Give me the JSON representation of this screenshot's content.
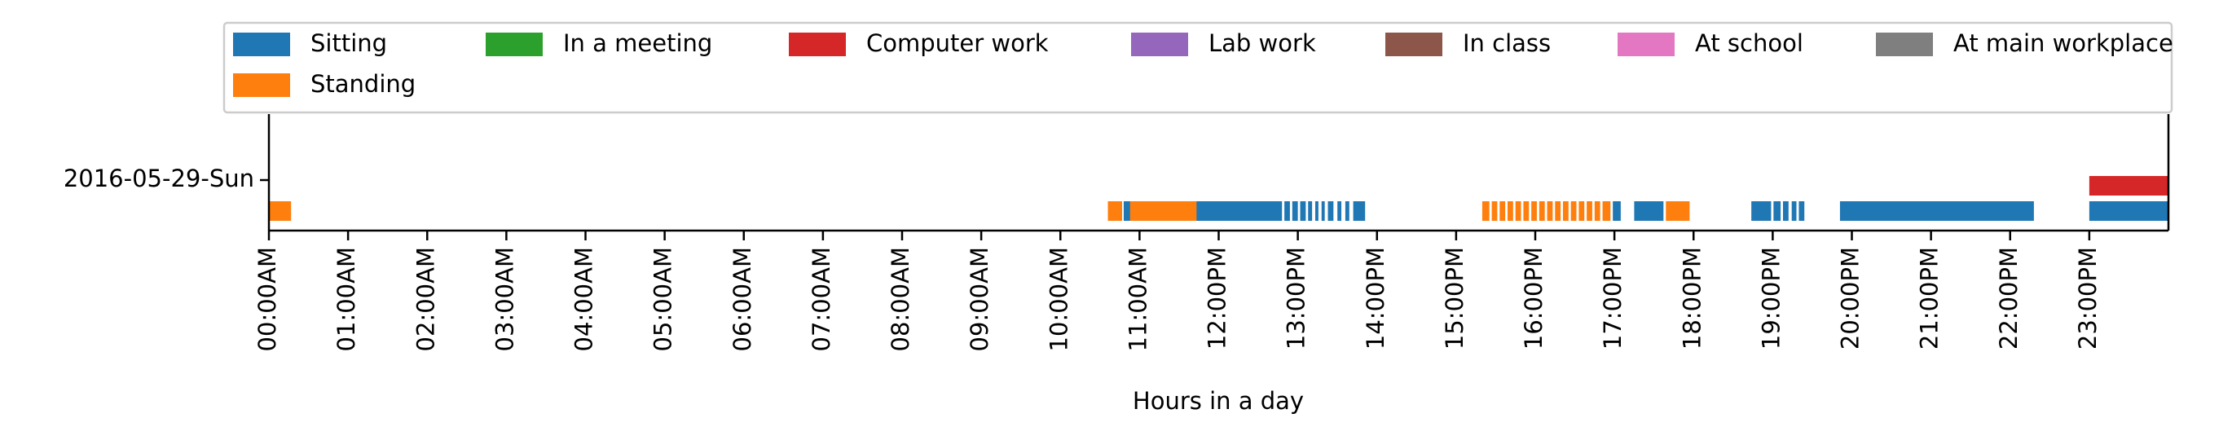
{
  "chart_data": {
    "type": "timeline",
    "xlabel": "Hours in a day",
    "date_label": "2016-05-29-Sun",
    "xlim": [
      0,
      24
    ],
    "x_ticks": [
      {
        "value": 0,
        "label": "00:00AM"
      },
      {
        "value": 1,
        "label": "01:00AM"
      },
      {
        "value": 2,
        "label": "02:00AM"
      },
      {
        "value": 3,
        "label": "03:00AM"
      },
      {
        "value": 4,
        "label": "04:00AM"
      },
      {
        "value": 5,
        "label": "05:00AM"
      },
      {
        "value": 6,
        "label": "06:00AM"
      },
      {
        "value": 7,
        "label": "07:00AM"
      },
      {
        "value": 8,
        "label": "08:00AM"
      },
      {
        "value": 9,
        "label": "09:00AM"
      },
      {
        "value": 10,
        "label": "10:00AM"
      },
      {
        "value": 11,
        "label": "11:00AM"
      },
      {
        "value": 12,
        "label": "12:00PM"
      },
      {
        "value": 13,
        "label": "13:00PM"
      },
      {
        "value": 14,
        "label": "14:00PM"
      },
      {
        "value": 15,
        "label": "15:00PM"
      },
      {
        "value": 16,
        "label": "16:00PM"
      },
      {
        "value": 17,
        "label": "17:00PM"
      },
      {
        "value": 18,
        "label": "18:00PM"
      },
      {
        "value": 19,
        "label": "19:00PM"
      },
      {
        "value": 20,
        "label": "20:00PM"
      },
      {
        "value": 21,
        "label": "21:00PM"
      },
      {
        "value": 22,
        "label": "22:00PM"
      },
      {
        "value": 23,
        "label": "23:00PM"
      }
    ],
    "legend_position": "top",
    "series": [
      {
        "name": "Sitting",
        "color": "#1f77b4",
        "lane": 0,
        "intervals": [
          [
            10.8,
            10.9
          ],
          [
            11.7,
            12.8
          ],
          [
            12.83,
            12.9
          ],
          [
            12.93,
            13.0
          ],
          [
            13.03,
            13.1
          ],
          [
            13.13,
            13.18
          ],
          [
            13.22,
            13.26
          ],
          [
            13.3,
            13.34
          ],
          [
            13.38,
            13.45
          ],
          [
            13.5,
            13.55
          ],
          [
            13.6,
            13.65
          ],
          [
            13.7,
            13.85
          ],
          [
            16.98,
            17.08
          ],
          [
            17.25,
            17.62
          ],
          [
            18.73,
            18.98
          ],
          [
            19.01,
            19.1
          ],
          [
            19.13,
            19.2
          ],
          [
            19.24,
            19.3
          ],
          [
            19.33,
            19.4
          ],
          [
            19.85,
            22.3
          ],
          [
            23.0,
            24.0
          ]
        ]
      },
      {
        "name": "Standing",
        "color": "#ff7f0e",
        "lane": 0,
        "intervals": [
          [
            0.0,
            0.28
          ],
          [
            10.6,
            10.78
          ],
          [
            10.88,
            11.72
          ],
          [
            15.33,
            15.42
          ],
          [
            15.45,
            15.52
          ],
          [
            15.55,
            15.62
          ],
          [
            15.65,
            15.72
          ],
          [
            15.75,
            15.82
          ],
          [
            15.85,
            15.92
          ],
          [
            15.95,
            16.02
          ],
          [
            16.05,
            16.12
          ],
          [
            16.15,
            16.22
          ],
          [
            16.25,
            16.32
          ],
          [
            16.35,
            16.42
          ],
          [
            16.45,
            16.52
          ],
          [
            16.55,
            16.62
          ],
          [
            16.65,
            16.72
          ],
          [
            16.75,
            16.82
          ],
          [
            16.85,
            16.95
          ],
          [
            17.65,
            17.95
          ]
        ]
      },
      {
        "name": "In a meeting",
        "color": "#2ca02c",
        "lane": 1,
        "intervals": []
      },
      {
        "name": "Computer work",
        "color": "#d62728",
        "lane": 1,
        "intervals": [
          [
            23.0,
            24.0
          ]
        ]
      },
      {
        "name": "Lab work",
        "color": "#9467bd",
        "lane": 1,
        "intervals": []
      },
      {
        "name": "In class",
        "color": "#8c564b",
        "lane": 1,
        "intervals": []
      },
      {
        "name": "At school",
        "color": "#e377c2",
        "lane": 1,
        "intervals": []
      },
      {
        "name": "At main workplace",
        "color": "#7f7f7f",
        "lane": 1,
        "intervals": []
      }
    ]
  }
}
